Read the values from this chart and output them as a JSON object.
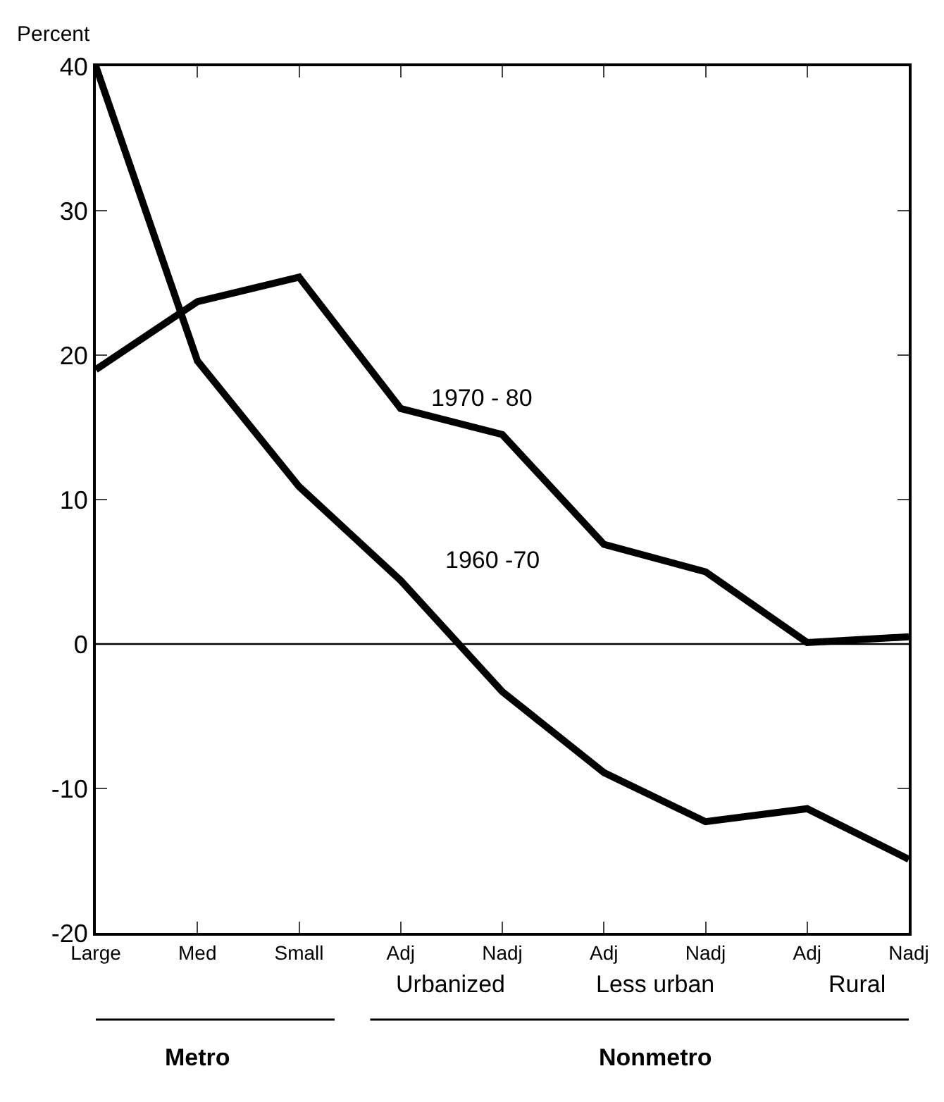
{
  "chart_data": {
    "type": "line",
    "ylabel": "Percent",
    "categories": [
      "Large",
      "Med",
      "Small",
      "Adj",
      "Nadj",
      "Adj",
      "Nadj",
      "Adj",
      "Nadj"
    ],
    "series": [
      {
        "name": "1970 - 80",
        "color": "#000000",
        "values": [
          19.0,
          23.7,
          25.4,
          16.3,
          14.5,
          6.9,
          5.0,
          0.1,
          0.5
        ]
      },
      {
        "name": "1960 -70",
        "color": "#000000",
        "values": [
          40.0,
          19.6,
          10.9,
          4.4,
          -3.3,
          -8.9,
          -12.3,
          -11.4,
          -14.9
        ]
      }
    ],
    "annotations": [
      "Urbanized",
      "Less urban",
      "Rural",
      "Metro",
      "Nonmetro"
    ],
    "ylim": [
      -20,
      40
    ],
    "yticks": [
      -20,
      -10,
      0,
      10,
      20,
      30,
      40
    ],
    "ref_lines": [
      {
        "axis": "y",
        "value": 0,
        "color": "#000000"
      }
    ],
    "legend": false,
    "marker": "none",
    "line_style": "solid"
  }
}
